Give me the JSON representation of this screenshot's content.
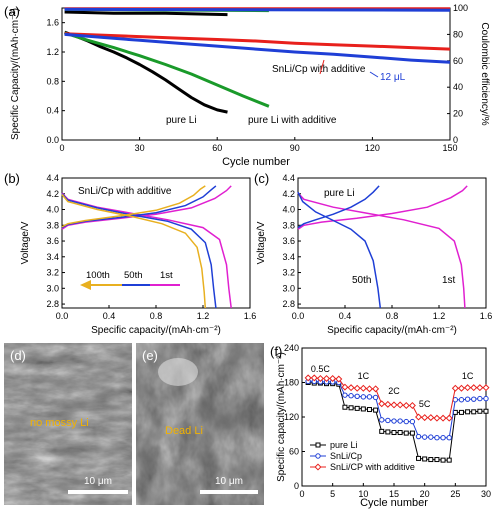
{
  "chart_data": [
    {
      "panel": "(a)",
      "type": "line",
      "xlabel": "Cycle number",
      "ylabel": "Specific Capacity/(mAh·cm⁻²)",
      "ylabel_right": "Coulombic efficiency/%",
      "xlim": [
        0,
        150
      ],
      "ylim": [
        0,
        1.8
      ],
      "ylim_right": [
        0,
        100
      ],
      "xticks": [
        "0",
        "30",
        "60",
        "90",
        "120",
        "150"
      ],
      "yticks": [
        "0.0",
        "0.4",
        "0.8",
        "1.2",
        "1.6"
      ],
      "yticks_right": [
        "0",
        "20",
        "40",
        "60",
        "80",
        "100"
      ],
      "series": [
        {
          "name": "pure Li",
          "color": "#000000",
          "axis": "left",
          "x": [
            1,
            5,
            10,
            15,
            20,
            25,
            30,
            35,
            40,
            45,
            50,
            55,
            60,
            64
          ],
          "y": [
            1.47,
            1.42,
            1.35,
            1.27,
            1.2,
            1.12,
            1.03,
            0.93,
            0.82,
            0.7,
            0.58,
            0.48,
            0.41,
            0.38
          ]
        },
        {
          "name": "pure Li with additive",
          "color": "#1a9a2a",
          "axis": "left",
          "x": [
            1,
            10,
            20,
            30,
            40,
            50,
            60,
            70,
            80
          ],
          "y": [
            1.46,
            1.36,
            1.26,
            1.15,
            1.03,
            0.9,
            0.75,
            0.6,
            0.46
          ]
        },
        {
          "name": "SnLi/Cp with additive",
          "color": "#e8201c",
          "axis": "left",
          "x": [
            1,
            15,
            30,
            45,
            60,
            75,
            90,
            105,
            120,
            135,
            150
          ],
          "y": [
            1.45,
            1.43,
            1.41,
            1.39,
            1.37,
            1.35,
            1.32,
            1.3,
            1.28,
            1.26,
            1.24
          ]
        },
        {
          "name": "12 μL",
          "color": "#1f3fd6",
          "axis": "left",
          "x": [
            1,
            15,
            30,
            45,
            60,
            75,
            90,
            105,
            120,
            135,
            150
          ],
          "y": [
            1.44,
            1.4,
            1.36,
            1.32,
            1.28,
            1.24,
            1.2,
            1.17,
            1.13,
            1.09,
            1.06
          ]
        },
        {
          "name": "CE pure Li",
          "color": "#000000",
          "axis": "right",
          "x": [
            1,
            20,
            40,
            64
          ],
          "y": [
            97,
            96,
            96,
            95
          ]
        },
        {
          "name": "CE pure Li with additive",
          "color": "#1a9a2a",
          "axis": "right",
          "x": [
            1,
            40,
            80
          ],
          "y": [
            99,
            98.5,
            98
          ]
        },
        {
          "name": "CE SnLi/Cp with additive",
          "color": "#e8201c",
          "axis": "right",
          "x": [
            1,
            75,
            150
          ],
          "y": [
            99.5,
            99.5,
            99.4
          ]
        },
        {
          "name": "CE 12 μL",
          "color": "#1f3fd6",
          "axis": "right",
          "x": [
            1,
            75,
            150
          ],
          "y": [
            99,
            98.6,
            98.3
          ]
        }
      ],
      "annotations": [
        "SnLi/Cp with additive",
        "12 μL",
        "pure Li",
        "pure Li with additive"
      ]
    },
    {
      "panel": "(b)",
      "type": "line",
      "xlabel": "Specific capacity/(mAh·cm⁻²)",
      "ylabel": "Voltage/V",
      "xlim": [
        0,
        1.6
      ],
      "ylim": [
        2.75,
        4.4
      ],
      "xticks": [
        "0.0",
        "0.4",
        "0.8",
        "1.2",
        "1.6"
      ],
      "yticks": [
        "2.8",
        "3.0",
        "3.2",
        "3.4",
        "3.6",
        "3.8",
        "4.0",
        "4.2",
        "4.4"
      ],
      "title": "SnLi/Cp with additive",
      "legend": [
        "100th",
        "50th",
        "1st"
      ],
      "series": [
        {
          "name": "1st",
          "color": "#e020d0",
          "charge": {
            "x": [
              0,
              0.05,
              0.2,
              0.5,
              0.8,
              1.1,
              1.3,
              1.4,
              1.44
            ],
            "y": [
              3.75,
              3.8,
              3.84,
              3.89,
              3.94,
              4.02,
              4.14,
              4.24,
              4.3
            ]
          },
          "discharge": {
            "x": [
              0,
              0.05,
              0.3,
              0.6,
              0.9,
              1.2,
              1.34,
              1.4,
              1.42,
              1.44
            ],
            "y": [
              4.21,
              4.13,
              4.03,
              3.95,
              3.87,
              3.77,
              3.62,
              3.3,
              3.0,
              2.75
            ]
          }
        },
        {
          "name": "50th",
          "color": "#1f3fd6",
          "charge": {
            "x": [
              0,
              0.05,
              0.2,
              0.5,
              0.8,
              1.05,
              1.2,
              1.27,
              1.31
            ],
            "y": [
              3.77,
              3.81,
              3.85,
              3.9,
              3.96,
              4.05,
              4.16,
              4.25,
              4.3
            ]
          },
          "discharge": {
            "x": [
              0,
              0.05,
              0.3,
              0.6,
              0.9,
              1.1,
              1.22,
              1.27,
              1.29,
              1.31
            ],
            "y": [
              4.2,
              4.12,
              4.02,
              3.93,
              3.85,
              3.75,
              3.58,
              3.3,
              3.0,
              2.75
            ]
          }
        },
        {
          "name": "100th",
          "color": "#e8b020",
          "charge": {
            "x": [
              0,
              0.05,
              0.2,
              0.5,
              0.8,
              1.0,
              1.12,
              1.18,
              1.22
            ],
            "y": [
              3.78,
              3.82,
              3.86,
              3.92,
              3.99,
              4.08,
              4.18,
              4.26,
              4.3
            ]
          },
          "discharge": {
            "x": [
              0,
              0.05,
              0.3,
              0.6,
              0.85,
              1.05,
              1.15,
              1.19,
              1.21,
              1.22
            ],
            "y": [
              4.19,
              4.1,
              4.0,
              3.91,
              3.82,
              3.7,
              3.52,
              3.25,
              2.95,
              2.75
            ]
          }
        }
      ]
    },
    {
      "panel": "(c)",
      "type": "line",
      "xlabel": "Specific capacity/(mAh·cm⁻²)",
      "ylabel": "Voltage/V",
      "xlim": [
        0,
        1.6
      ],
      "ylim": [
        2.75,
        4.4
      ],
      "xticks": [
        "0.0",
        "0.4",
        "0.8",
        "1.2",
        "1.6"
      ],
      "yticks": [
        "2.8",
        "3.0",
        "3.2",
        "3.4",
        "3.6",
        "3.8",
        "4.0",
        "4.2",
        "4.4"
      ],
      "title": "pure Li",
      "series": [
        {
          "name": "1st",
          "color": "#e020d0",
          "charge": {
            "x": [
              0,
              0.05,
              0.2,
              0.5,
              0.8,
              1.1,
              1.3,
              1.4,
              1.44
            ],
            "y": [
              3.75,
              3.8,
              3.84,
              3.89,
              3.95,
              4.03,
              4.15,
              4.24,
              4.3
            ]
          },
          "discharge": {
            "x": [
              0,
              0.05,
              0.3,
              0.6,
              0.9,
              1.2,
              1.33,
              1.39,
              1.41,
              1.42
            ],
            "y": [
              4.21,
              4.13,
              4.03,
              3.95,
              3.87,
              3.76,
              3.6,
              3.3,
              3.0,
              2.75
            ]
          }
        },
        {
          "name": "50th",
          "color": "#1f3fd6",
          "charge": {
            "x": [
              0,
              0.05,
              0.15,
              0.3,
              0.45,
              0.57,
              0.64,
              0.69
            ],
            "y": [
              3.77,
              3.82,
              3.87,
              3.94,
              4.03,
              4.13,
              4.22,
              4.3
            ]
          },
          "discharge": {
            "x": [
              0,
              0.04,
              0.15,
              0.3,
              0.45,
              0.57,
              0.64,
              0.68,
              0.7
            ],
            "y": [
              4.22,
              4.1,
              3.97,
              3.86,
              3.75,
              3.6,
              3.35,
              3.0,
              2.75
            ]
          }
        }
      ],
      "annotations": [
        "50th",
        "1st"
      ]
    },
    {
      "panel": "(f)",
      "type": "line",
      "xlabel": "Cycle number",
      "ylabel": "Specific capacity/(mAh·cm⁻²)",
      "xlim": [
        0,
        30
      ],
      "ylim": [
        0,
        240
      ],
      "xticks": [
        "0",
        "5",
        "10",
        "15",
        "20",
        "25",
        "30"
      ],
      "yticks": [
        "0",
        "60",
        "120",
        "180",
        "240"
      ],
      "rate_labels": [
        "0.5C",
        "1C",
        "2C",
        "5C",
        "1C"
      ],
      "legend_position": "bottom-left",
      "x": [
        1,
        2,
        3,
        4,
        5,
        6,
        7,
        8,
        9,
        10,
        11,
        12,
        13,
        14,
        15,
        16,
        17,
        18,
        19,
        20,
        21,
        22,
        23,
        24,
        25,
        26,
        27,
        28,
        29,
        30
      ],
      "series": [
        {
          "name": "pure Li",
          "color": "#000000",
          "marker": "square",
          "values": [
            180,
            179,
            179,
            178,
            178,
            177,
            137,
            136,
            135,
            134,
            133,
            132,
            95,
            94,
            93,
            93,
            92,
            92,
            48,
            47,
            46,
            46,
            45,
            45,
            128,
            128,
            129,
            129,
            130,
            130
          ]
        },
        {
          "name": "SnLi/Cp",
          "color": "#1f3fd6",
          "marker": "circle",
          "values": [
            182,
            182,
            181,
            181,
            181,
            180,
            158,
            157,
            156,
            155,
            155,
            154,
            115,
            114,
            113,
            113,
            112,
            112,
            86,
            85,
            85,
            84,
            84,
            84,
            150,
            150,
            151,
            151,
            152,
            152
          ]
        },
        {
          "name": "SnLi/CP with additive",
          "color": "#e8201c",
          "marker": "diamond",
          "values": [
            188,
            188,
            187,
            187,
            187,
            186,
            172,
            171,
            170,
            170,
            169,
            169,
            143,
            142,
            141,
            141,
            140,
            140,
            120,
            119,
            119,
            118,
            118,
            118,
            170,
            170,
            171,
            171,
            171,
            171
          ]
        }
      ]
    }
  ],
  "panels": {
    "a": "(a)",
    "b": "(b)",
    "c": "(c)",
    "d": "(d)",
    "e": "(e)",
    "f": "(f)"
  },
  "images": {
    "d_label": "no mossy Li",
    "e_label": "Dead Li",
    "d_scale": "10 μm",
    "e_scale": "10 μm"
  }
}
